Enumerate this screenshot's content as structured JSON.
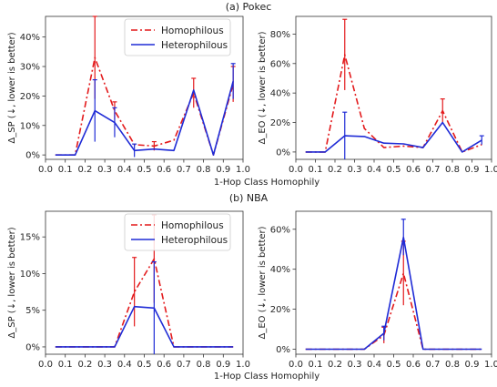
{
  "figure": {
    "title_top": "(a) Pokec",
    "title_bottom": "(b) NBA",
    "xlabel": "1-Hop Class Homophily",
    "ylabel_sp": "Δ_SP (↓, lower is better)",
    "ylabel_eo": "Δ_EO (↓, lower is better)",
    "legend": {
      "homophilous": "Homophilous",
      "heterophilous": "Heterophilous"
    },
    "colors": {
      "homophilous": "#e31a1c",
      "heterophilous": "#1f2bd6"
    }
  },
  "chart_data": [
    {
      "type": "line",
      "panel": "pokec-sp",
      "xlim": [
        0,
        1
      ],
      "ylim": [
        -1.5,
        47
      ],
      "xticks": [
        0.0,
        0.1,
        0.2,
        0.3,
        0.4,
        0.5,
        0.6,
        0.7,
        0.8,
        0.9,
        1.0
      ],
      "xtick_labels": [
        "0.0",
        "0.1",
        "0.2",
        "0.3",
        "0.4",
        "0.5",
        "0.6",
        "0.7",
        "0.8",
        "0.9",
        "1.0"
      ],
      "yticks": [
        0,
        10,
        20,
        30,
        40
      ],
      "ytick_labels": [
        "0%",
        "10%",
        "20%",
        "30%",
        "40%"
      ],
      "legend": true,
      "x": [
        0.05,
        0.15,
        0.25,
        0.35,
        0.45,
        0.55,
        0.65,
        0.75,
        0.85,
        0.95
      ],
      "series": [
        {
          "name": "Homophilous",
          "values": [
            0,
            0,
            33,
            15,
            3.5,
            3,
            5,
            21,
            0,
            24
          ],
          "err": [
            null,
            null,
            14,
            3,
            null,
            1.5,
            null,
            5,
            null,
            6
          ]
        },
        {
          "name": "Heterophilous",
          "values": [
            0,
            0,
            15,
            11,
            1.5,
            2,
            1.5,
            22,
            0,
            25
          ],
          "err": [
            null,
            null,
            10.5,
            5,
            2.2,
            null,
            null,
            null,
            null,
            6
          ]
        }
      ]
    },
    {
      "type": "line",
      "panel": "pokec-eo",
      "xlim": [
        0,
        1
      ],
      "ylim": [
        -5,
        92
      ],
      "xticks": [
        0.0,
        0.1,
        0.2,
        0.3,
        0.4,
        0.5,
        0.6,
        0.7,
        0.8,
        0.9,
        1.0
      ],
      "xtick_labels": [
        "0.0",
        "0.1",
        "0.2",
        "0.3",
        "0.4",
        "0.5",
        "0.6",
        "0.7",
        "0.8",
        "0.9",
        "1.0"
      ],
      "yticks": [
        0,
        20,
        40,
        60,
        80
      ],
      "ytick_labels": [
        "0%",
        "20%",
        "40%",
        "60%",
        "80%"
      ],
      "legend": false,
      "x": [
        0.05,
        0.15,
        0.25,
        0.35,
        0.45,
        0.55,
        0.65,
        0.75,
        0.85,
        0.95
      ],
      "series": [
        {
          "name": "Homophilous",
          "values": [
            0,
            0,
            66,
            16,
            3,
            4,
            3,
            28,
            0,
            5
          ],
          "err": [
            null,
            null,
            24,
            null,
            null,
            null,
            null,
            8,
            null,
            null
          ]
        },
        {
          "name": "Heterophilous",
          "values": [
            0,
            0,
            11,
            10.5,
            6,
            5.5,
            3,
            20,
            0,
            8
          ],
          "err": [
            null,
            null,
            16,
            null,
            null,
            null,
            null,
            null,
            null,
            3
          ]
        }
      ]
    },
    {
      "type": "line",
      "panel": "nba-sp",
      "xlim": [
        0,
        1
      ],
      "ylim": [
        -1,
        18.5
      ],
      "xticks": [
        0.0,
        0.1,
        0.2,
        0.3,
        0.4,
        0.5,
        0.6,
        0.7,
        0.8,
        0.9,
        1.0
      ],
      "xtick_labels": [
        "0.0",
        "0.1",
        "0.2",
        "0.3",
        "0.4",
        "0.5",
        "0.6",
        "0.7",
        "0.8",
        "0.9",
        "1.0"
      ],
      "yticks": [
        0,
        5,
        10,
        15
      ],
      "ytick_labels": [
        "0%",
        "5%",
        "10%",
        "15%"
      ],
      "legend": true,
      "x": [
        0.05,
        0.15,
        0.25,
        0.35,
        0.45,
        0.55,
        0.65,
        0.75,
        0.85,
        0.95
      ],
      "series": [
        {
          "name": "Homophilous",
          "values": [
            0,
            0,
            0,
            0,
            7.5,
            12,
            0,
            0,
            0,
            0
          ],
          "err": [
            null,
            null,
            null,
            null,
            4.7,
            6,
            null,
            null,
            null,
            null
          ]
        },
        {
          "name": "Heterophilous",
          "values": [
            0,
            0,
            0,
            0,
            5.5,
            5.3,
            0,
            0,
            0,
            0
          ],
          "err": [
            null,
            null,
            null,
            null,
            null,
            6.3,
            null,
            null,
            null,
            null
          ]
        }
      ]
    },
    {
      "type": "line",
      "panel": "nba-eo",
      "xlim": [
        0,
        1
      ],
      "ylim": [
        -2.5,
        69
      ],
      "xticks": [
        0.0,
        0.1,
        0.2,
        0.3,
        0.4,
        0.5,
        0.6,
        0.7,
        0.8,
        0.9,
        1.0
      ],
      "xtick_labels": [
        "0.0",
        "0.1",
        "0.2",
        "0.3",
        "0.4",
        "0.5",
        "0.6",
        "0.7",
        "0.8",
        "0.9",
        "1.0"
      ],
      "yticks": [
        0,
        20,
        40,
        60
      ],
      "ytick_labels": [
        "0%",
        "20%",
        "40%",
        "60%"
      ],
      "legend": false,
      "x": [
        0.05,
        0.15,
        0.25,
        0.35,
        0.45,
        0.55,
        0.65,
        0.75,
        0.85,
        0.95
      ],
      "series": [
        {
          "name": "Homophilous",
          "values": [
            0,
            0,
            0,
            0,
            7,
            38,
            0,
            0,
            0,
            0
          ],
          "err": [
            null,
            null,
            null,
            null,
            4,
            16,
            null,
            null,
            null,
            null
          ]
        },
        {
          "name": "Heterophilous",
          "values": [
            0,
            0,
            0,
            0,
            8,
            56,
            0,
            0,
            0,
            0
          ],
          "err": [
            null,
            null,
            null,
            null,
            3.5,
            9,
            null,
            null,
            null,
            null
          ]
        }
      ]
    }
  ]
}
